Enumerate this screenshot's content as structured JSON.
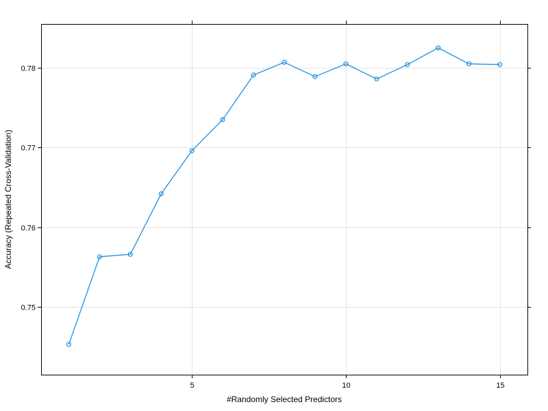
{
  "chart_data": {
    "type": "line",
    "title": "",
    "xlabel": "#Randomly Selected Predictors",
    "ylabel": "Accuracy (Repeated Cross-Validation)",
    "xlim": [
      0.1,
      15.9
    ],
    "ylim": [
      0.7415,
      0.7855
    ],
    "x_ticks": [
      5,
      10,
      15
    ],
    "x_tick_labels": [
      "5",
      "10",
      "15"
    ],
    "y_ticks": [
      0.75,
      0.76,
      0.77,
      0.78
    ],
    "y_tick_labels": [
      "0.75",
      "0.76",
      "0.77",
      "0.78"
    ],
    "grid": true,
    "series_color": "#1f8fe0",
    "grid_color": "#e4e4e4",
    "series": [
      {
        "name": "",
        "x": [
          1,
          2,
          3,
          4,
          5,
          6,
          7,
          8,
          9,
          10,
          11,
          12,
          13,
          14,
          15
        ],
        "values": [
          0.7453,
          0.7563,
          0.7566,
          0.7642,
          0.7696,
          0.7735,
          0.7791,
          0.7807,
          0.7789,
          0.7805,
          0.7786,
          0.7804,
          0.7825,
          0.7805,
          0.7804
        ]
      }
    ]
  }
}
